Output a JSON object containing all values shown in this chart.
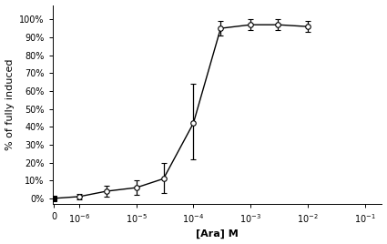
{
  "x_values": [
    0,
    1e-06,
    3e-06,
    1e-05,
    3e-05,
    0.0001,
    0.0003,
    0.001,
    0.003,
    0.01
  ],
  "y_values": [
    0.0,
    1.0,
    4.0,
    6.0,
    11.0,
    42.0,
    95.0,
    97.0,
    97.0,
    96.0
  ],
  "y_err_low": [
    0.5,
    1.5,
    3.0,
    4.0,
    8.0,
    20.0,
    4.0,
    3.0,
    3.0,
    3.0
  ],
  "y_err_high": [
    0.5,
    1.5,
    3.0,
    4.0,
    9.0,
    22.0,
    4.0,
    3.0,
    3.0,
    3.0
  ],
  "marker_styles": [
    "s",
    "o",
    "o",
    "o",
    "o",
    "o",
    "o",
    "o",
    "o",
    "o"
  ],
  "marker_faces": [
    "#000000",
    "#ffffff",
    "#ffffff",
    "#ffffff",
    "#ffffff",
    "#ffffff",
    "#ffffff",
    "#ffffff",
    "#ffffff",
    "#ffffff"
  ],
  "xlabel": "[Ara] M",
  "ylabel": "% of fully induced",
  "yticks": [
    0,
    10,
    20,
    30,
    40,
    50,
    60,
    70,
    80,
    90,
    100
  ],
  "ytick_labels": [
    "0%",
    "10%",
    "20%",
    "30%",
    "40%",
    "50%",
    "60%",
    "70%",
    "80%",
    "90%",
    "100%"
  ],
  "ylim": [
    -3,
    108
  ],
  "line_color": "#000000",
  "marker_edge": "#000000",
  "marker_size": 4,
  "linewidth": 1.0,
  "capsize": 2,
  "elinewidth": 0.9,
  "background_color": "#ffffff",
  "label_fontsize": 8,
  "tick_fontsize": 7,
  "linthresh": 1e-06,
  "linscale": 0.4
}
